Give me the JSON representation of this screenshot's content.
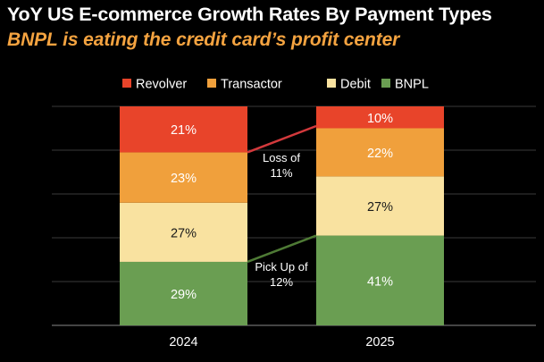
{
  "title": "YoY US E-commerce Growth Rates By Payment Types",
  "subtitle": "BNPL is eating the credit card’s profit center",
  "chart_data": {
    "type": "bar",
    "stacked": true,
    "categories": [
      "2024",
      "2025"
    ],
    "series": [
      {
        "name": "BNPL",
        "values": [
          29,
          41
        ],
        "labels": [
          "29%",
          "41%"
        ]
      },
      {
        "name": "Debit",
        "values": [
          27,
          27
        ],
        "labels": [
          "27%",
          "27%"
        ]
      },
      {
        "name": "Transactor",
        "values": [
          23,
          22
        ],
        "labels": [
          "23%",
          "22%"
        ]
      },
      {
        "name": "Revolver",
        "values": [
          21,
          10
        ],
        "labels": [
          "21%",
          "10%"
        ]
      }
    ],
    "legend": [
      "Revolver",
      "Transactor",
      "Debit",
      "BNPL"
    ],
    "legend_position": "top",
    "ylim": [
      0,
      100
    ],
    "grid": true,
    "annotations": [
      {
        "text_lines": [
          "Loss of",
          "11%"
        ],
        "between": "Revolver"
      },
      {
        "text_lines": [
          "Pick Up of",
          "12%"
        ],
        "between": "BNPL"
      }
    ]
  },
  "colors": {
    "Revolver": "#e8442a",
    "Transactor": "#f0a03c",
    "Debit": "#f9e2a0",
    "BNPL": "#6a9e52",
    "loss_line": "#d2393c",
    "gain_line": "#4e7a35",
    "subtitle": "#f4a340"
  }
}
